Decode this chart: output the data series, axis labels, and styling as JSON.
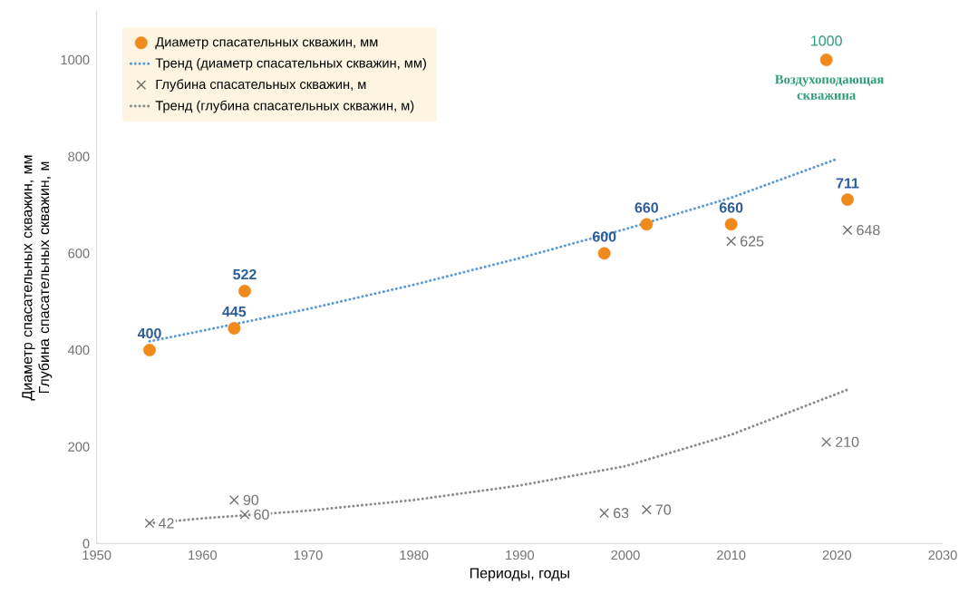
{
  "chart_data": {
    "type": "scatter",
    "xlabel": "Периоды, годы",
    "ylabel": "Диаметр спасательных скважин, мм Глубина спасательных скважин, м",
    "xlim": [
      1950,
      2030
    ],
    "xticks": [
      1950,
      1960,
      1970,
      1980,
      1990,
      2000,
      2010,
      2020,
      2030
    ],
    "ylim": [
      0,
      1100
    ],
    "yticks": [
      0,
      200,
      400,
      600,
      800,
      1000
    ],
    "legend": "top left",
    "grid": false,
    "series": [
      {
        "name": "Диаметр спасательных скважин, мм",
        "marker": "circle",
        "color": "#f08a1c",
        "x": [
          1955,
          1963,
          1964,
          1998,
          2002,
          2010,
          2019,
          2021
        ],
        "values": [
          400,
          445,
          522,
          600,
          660,
          660,
          1000,
          711
        ],
        "value_labels": [
          "400",
          "445",
          "522",
          "600",
          "660",
          "660",
          null,
          "711"
        ]
      },
      {
        "name": "Тренд (диаметр спасательных скважин, мм)",
        "type": "line",
        "marker": "none",
        "line_style": "dotted",
        "color": "#5b9bd5",
        "x": [
          1955,
          1960,
          1970,
          1980,
          1990,
          2000,
          2010,
          2020
        ],
        "values": [
          418,
          440,
          485,
          535,
          590,
          650,
          715,
          795
        ]
      },
      {
        "name": "Глубина спасательных скважин, м",
        "marker": "cross",
        "color": "#6b6b6b",
        "x": [
          1955,
          1963,
          1964,
          1998,
          2002,
          2010,
          2019,
          2021
        ],
        "values": [
          42,
          90,
          60,
          63,
          70,
          625,
          210,
          648
        ],
        "value_labels": [
          "42",
          "90",
          "60",
          "63",
          "70",
          "625",
          "210",
          "648"
        ]
      },
      {
        "name": "Тренд (глубина спасательных скважин, м)",
        "type": "line",
        "marker": "none",
        "line_style": "dotted",
        "color": "#8c8c8c",
        "x": [
          1955,
          1960,
          1970,
          1980,
          1990,
          2000,
          2010,
          2021
        ],
        "values": [
          42,
          52,
          68,
          90,
          120,
          160,
          225,
          318
        ]
      }
    ],
    "annotations": [
      {
        "text": "1000",
        "x": 2019,
        "y": 1000
      },
      {
        "text": "Воздухоподающая скважина",
        "x": 2019,
        "y": 1000
      }
    ]
  }
}
